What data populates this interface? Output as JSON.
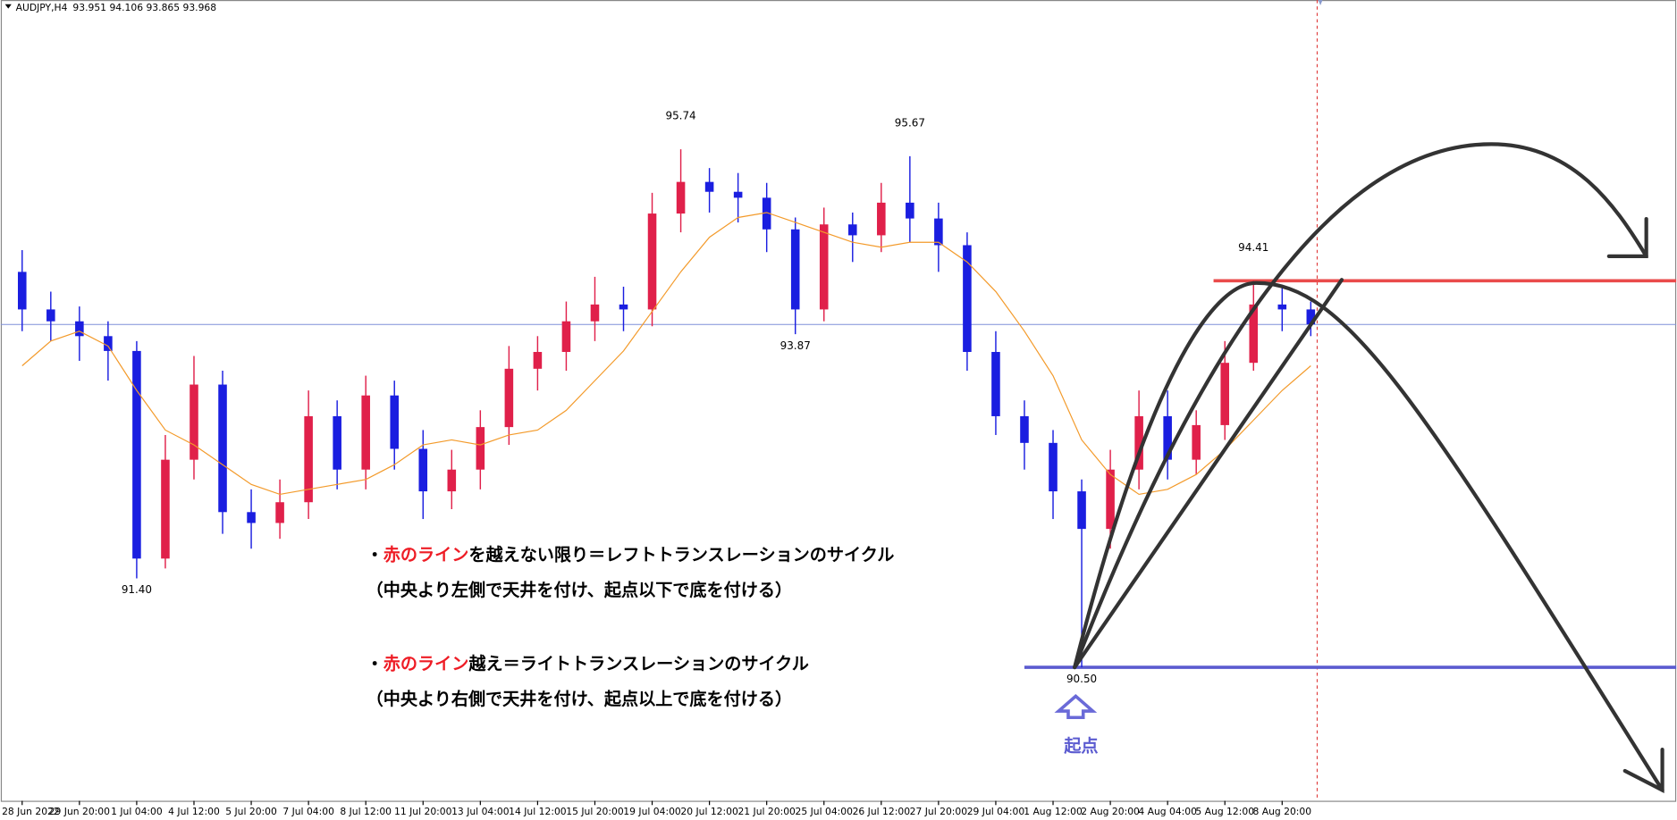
{
  "chart_data": {
    "type": "candlestick",
    "title": "AUDJPY,H4",
    "subtitle": "93.951 94.106 93.865 93.968",
    "categories": [
      "28 Jun 2022",
      null,
      "29 Jun 20:00",
      null,
      "1 Jul 04:00",
      null,
      "4 Jul 12:00",
      null,
      "5 Jul 20:00",
      null,
      "7 Jul 04:00",
      null,
      "8 Jul 12:00",
      null,
      "11 Jul 20:00",
      null,
      "13 Jul 04:00",
      null,
      "14 Jul 12:00",
      null,
      "15 Jul 20:00",
      null,
      "19 Jul 04:00",
      null,
      "20 Jul 12:00",
      null,
      "21 Jul 20:00",
      null,
      "25 Jul 04:00",
      null,
      "26 Jul 12:00",
      null,
      "27 Jul 20:00",
      null,
      "29 Jul 04:00",
      null,
      "1 Aug 12:00",
      null,
      "2 Aug 20:00",
      null,
      "4 Aug 04:00",
      null,
      "5 Aug 12:00",
      null,
      "8 Aug 20:00",
      null
    ],
    "open": [
      94.5,
      94.12,
      94.0,
      93.85,
      93.7,
      91.6,
      92.6,
      93.36,
      92.07,
      91.96,
      92.17,
      93.04,
      92.5,
      93.25,
      92.71,
      92.28,
      92.5,
      92.93,
      93.52,
      93.69,
      94.0,
      94.17,
      94.12,
      95.09,
      95.41,
      95.31,
      95.25,
      94.93,
      94.12,
      94.98,
      94.87,
      95.2,
      95.04,
      94.77,
      93.69,
      93.04,
      92.77,
      92.28,
      91.9,
      92.5,
      93.04,
      92.6,
      92.95,
      93.58,
      94.17,
      94.12
    ],
    "high": [
      94.72,
      94.3,
      94.15,
      94.0,
      93.8,
      92.85,
      93.65,
      93.5,
      92.3,
      92.4,
      93.3,
      93.2,
      93.45,
      93.4,
      92.9,
      92.7,
      93.1,
      93.75,
      93.85,
      94.2,
      94.45,
      94.35,
      95.3,
      95.74,
      95.55,
      95.5,
      95.4,
      95.05,
      95.15,
      95.1,
      95.4,
      95.67,
      95.2,
      94.9,
      93.9,
      93.2,
      92.9,
      92.4,
      92.7,
      93.3,
      93.3,
      93.1,
      93.8,
      94.41,
      94.35,
      94.2
    ],
    "low": [
      93.9,
      93.8,
      93.6,
      93.4,
      91.4,
      91.5,
      92.4,
      91.85,
      91.7,
      91.8,
      92.0,
      92.3,
      92.3,
      92.5,
      92.0,
      92.1,
      92.3,
      92.75,
      93.3,
      93.5,
      93.8,
      93.9,
      93.95,
      94.9,
      95.1,
      95.0,
      94.7,
      93.87,
      94.0,
      94.6,
      94.7,
      94.8,
      94.5,
      93.5,
      92.85,
      92.5,
      92.0,
      90.5,
      91.7,
      92.3,
      92.4,
      92.45,
      92.8,
      93.5,
      93.9,
      93.85
    ],
    "close": [
      94.12,
      94.0,
      93.85,
      93.7,
      91.6,
      92.6,
      93.36,
      92.07,
      91.96,
      92.17,
      93.04,
      92.5,
      93.25,
      92.71,
      92.28,
      92.5,
      92.93,
      93.52,
      93.69,
      94.0,
      94.17,
      94.12,
      95.09,
      95.41,
      95.31,
      95.25,
      94.93,
      94.12,
      94.98,
      94.87,
      95.2,
      95.04,
      94.77,
      93.69,
      93.04,
      92.77,
      92.28,
      91.9,
      92.5,
      93.04,
      92.6,
      92.95,
      93.58,
      94.17,
      94.12,
      93.97
    ],
    "up_color": "#e0204a",
    "down_color": "#1a1ee0",
    "ma": {
      "color": "#f39a2a",
      "values": [
        93.55,
        93.8,
        93.9,
        93.75,
        93.3,
        92.9,
        92.75,
        92.55,
        92.35,
        92.25,
        92.3,
        92.35,
        92.4,
        92.55,
        92.75,
        92.8,
        92.75,
        92.85,
        92.9,
        93.1,
        93.4,
        93.7,
        94.1,
        94.5,
        94.85,
        95.05,
        95.1,
        95.0,
        94.9,
        94.8,
        94.75,
        94.8,
        94.8,
        94.6,
        94.3,
        93.9,
        93.45,
        92.8,
        92.45,
        92.25,
        92.3,
        92.45,
        92.7,
        93.0,
        93.3,
        93.55
      ]
    },
    "levels": [
      {
        "value": 94.41,
        "color": "#ea4b4b"
      },
      {
        "value": 90.5,
        "color": "#5b5bd0"
      },
      {
        "value": 93.968,
        "color": "#7f8fd8"
      }
    ],
    "price_labels": {
      "values": [
        95.74,
        95.67,
        93.87,
        91.4,
        90.5,
        94.41
      ],
      "value_labels": [
        "95.74",
        "95.67",
        "93.87",
        "91.40",
        "90.50",
        "94.41"
      ]
    },
    "ylim": [
      89.15,
      97.25
    ],
    "origin_label": "起点",
    "notes": [
      {
        "parts": [
          {
            "text": "・"
          },
          {
            "text": "赤のライン",
            "color": "#ee1c25"
          },
          {
            "text": "を越えない限り＝レフトトランスレーションのサイクル"
          }
        ]
      },
      {
        "parts": [
          {
            "text": "（中央より左側で天井を付け、起点以下で底を付ける）"
          }
        ]
      },
      {
        "parts": [
          {
            "text": "・"
          },
          {
            "text": "赤のライン",
            "color": "#ee1c25"
          },
          {
            "text": "越え＝ライトトランスレーションのサイクル"
          }
        ]
      },
      {
        "parts": [
          {
            "text": "（中央より右側で天井を付け、起点以上で底を付ける）"
          }
        ]
      }
    ]
  }
}
